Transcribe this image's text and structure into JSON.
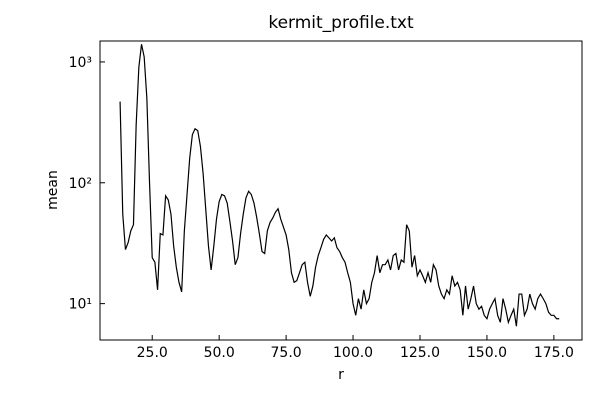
{
  "chart_data": {
    "type": "line",
    "title": "kermit_profile.txt",
    "xlabel": "r",
    "ylabel": "mean",
    "color": "#000000",
    "ylog": true,
    "xlim": [
      5.5,
      185.5
    ],
    "ylim": [
      5,
      1490
    ],
    "xticks": [
      {
        "value": 25,
        "label": "25.0"
      },
      {
        "value": 50,
        "label": "50.0"
      },
      {
        "value": 75,
        "label": "75.0"
      },
      {
        "value": 100,
        "label": "100.0"
      },
      {
        "value": 125,
        "label": "125.0"
      },
      {
        "value": 150,
        "label": "150.0"
      },
      {
        "value": 175,
        "label": "175.0"
      }
    ],
    "yticks": [
      {
        "value": 10,
        "label": "10¹"
      },
      {
        "value": 100,
        "label": "10²"
      },
      {
        "value": 1000,
        "label": "10³"
      }
    ],
    "x": [
      13,
      14,
      15,
      16,
      17,
      18,
      19,
      20,
      21,
      22,
      23,
      24,
      25,
      26,
      27,
      28,
      29,
      30,
      31,
      32,
      33,
      34,
      35,
      36,
      37,
      38,
      39,
      40,
      41,
      42,
      43,
      44,
      45,
      46,
      47,
      48,
      49,
      50,
      51,
      52,
      53,
      54,
      55,
      56,
      57,
      58,
      59,
      60,
      61,
      62,
      63,
      64,
      65,
      66,
      67,
      68,
      69,
      70,
      71,
      72,
      73,
      74,
      75,
      76,
      77,
      78,
      79,
      80,
      81,
      82,
      83,
      84,
      85,
      86,
      87,
      88,
      89,
      90,
      91,
      92,
      93,
      94,
      95,
      96,
      97,
      98,
      99,
      100,
      101,
      102,
      103,
      104,
      105,
      106,
      107,
      108,
      109,
      110,
      111,
      112,
      113,
      114,
      115,
      116,
      117,
      118,
      119,
      120,
      121,
      122,
      123,
      124,
      125,
      126,
      127,
      128,
      129,
      130,
      131,
      132,
      133,
      134,
      135,
      136,
      137,
      138,
      139,
      140,
      141,
      142,
      143,
      144,
      145,
      146,
      147,
      148,
      149,
      150,
      151,
      152,
      153,
      154,
      155,
      156,
      157,
      158,
      159,
      160,
      161,
      162,
      163,
      164,
      165,
      166,
      167,
      168,
      169,
      170,
      171,
      172,
      173,
      174,
      175,
      176,
      177
    ],
    "values": [
      470,
      55,
      28,
      32,
      40,
      45,
      300,
      900,
      1400,
      1100,
      500,
      100,
      24,
      22,
      13,
      38,
      37,
      78,
      72,
      55,
      30,
      20,
      15,
      12.5,
      40,
      80,
      160,
      250,
      280,
      270,
      200,
      120,
      60,
      30,
      19,
      30,
      50,
      70,
      80,
      78,
      68,
      48,
      33,
      21,
      24,
      38,
      55,
      75,
      85,
      80,
      68,
      52,
      38,
      27,
      26,
      40,
      47,
      51,
      57,
      61,
      50,
      43,
      37,
      28,
      18,
      15,
      15.5,
      18,
      21,
      22,
      15,
      11.5,
      14,
      20,
      25,
      29,
      34,
      37,
      35,
      33,
      35,
      29,
      27,
      24,
      22,
      18,
      15,
      10,
      8,
      11,
      9,
      13,
      10,
      11,
      15,
      18,
      25,
      18,
      21,
      21,
      23,
      19,
      25,
      26,
      19,
      23,
      22,
      45,
      40,
      20,
      25,
      17,
      19,
      17,
      15,
      18,
      15,
      21,
      19,
      14,
      12,
      11,
      13,
      12,
      17,
      14,
      15,
      13,
      8,
      14,
      9,
      11,
      14,
      10,
      9,
      9.5,
      8,
      7.5,
      9,
      10,
      11,
      8,
      7,
      11,
      9,
      7,
      8,
      9,
      6.5,
      12,
      12,
      8,
      9,
      12,
      10,
      9,
      11,
      12,
      11,
      10,
      8.5,
      8,
      8,
      7.5,
      7.5
    ]
  }
}
